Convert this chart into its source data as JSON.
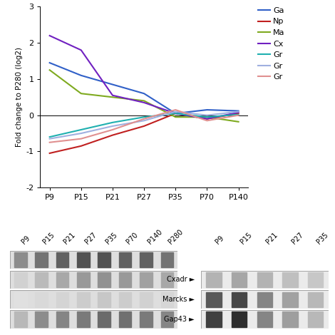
{
  "x_labels": [
    "P9",
    "P15",
    "P21",
    "P27",
    "P35",
    "P70",
    "P140"
  ],
  "x_vals": [
    0,
    1,
    2,
    3,
    4,
    5,
    6
  ],
  "series": {
    "Gap43": {
      "color": "#3060c8",
      "values": [
        1.45,
        1.1,
        0.85,
        0.6,
        0.05,
        0.15,
        0.12
      ]
    },
    "Nptx": {
      "color": "#c02020",
      "values": [
        -1.05,
        -0.85,
        -0.55,
        -0.3,
        0.05,
        -0.1,
        0.05
      ]
    },
    "Marcks": {
      "color": "#7faa20",
      "values": [
        1.25,
        0.6,
        0.5,
        0.4,
        -0.05,
        -0.05,
        -0.18
      ]
    },
    "Cxadr": {
      "color": "#7020c0",
      "values": [
        2.2,
        1.8,
        0.55,
        0.35,
        0.05,
        -0.1,
        0.08
      ]
    },
    "Grp1": {
      "color": "#20b0b0",
      "values": [
        -0.6,
        -0.4,
        -0.2,
        -0.05,
        0.05,
        -0.05,
        0.02
      ]
    },
    "Grp2": {
      "color": "#a0b0e0",
      "values": [
        -0.65,
        -0.5,
        -0.3,
        -0.15,
        0.1,
        0.0,
        0.1
      ]
    },
    "Grp3": {
      "color": "#e09090",
      "values": [
        -0.75,
        -0.65,
        -0.4,
        -0.1,
        0.15,
        -0.15,
        0.0
      ]
    }
  },
  "legend_abbrevs": [
    "Ga",
    "Np",
    "Ma",
    "Cx",
    "Gr",
    "Gr",
    "Gr"
  ],
  "ylabel": "Fold change to P280 (log2)",
  "ylim": [
    -2,
    3
  ],
  "yticks": [
    -2,
    -1,
    0,
    1,
    2,
    3
  ],
  "left_labels": [
    "P9",
    "P15",
    "P21",
    "P27",
    "P35",
    "P70",
    "P140",
    "P280"
  ],
  "right_labels": [
    "P9",
    "P15",
    "P21",
    "P27",
    "P35"
  ],
  "protein_names": [
    "Gap43",
    "Marcks",
    "Cxadr"
  ],
  "gel_left_rows": [
    [
      0.72,
      0.55,
      0.52,
      0.48,
      0.42,
      0.44,
      0.48,
      0.52
    ],
    [
      0.88,
      0.85,
      0.83,
      0.8,
      0.78,
      0.8,
      0.82,
      0.84
    ],
    [
      0.82,
      0.73,
      0.66,
      0.6,
      0.57,
      0.6,
      0.63,
      0.66
    ],
    [
      0.55,
      0.45,
      0.38,
      0.32,
      0.32,
      0.38,
      0.38,
      0.45
    ]
  ],
  "gel_right_rows": [
    [
      0.25,
      0.18,
      0.52,
      0.62,
      0.72
    ],
    [
      0.35,
      0.28,
      0.52,
      0.63,
      0.72
    ],
    [
      0.7,
      0.65,
      0.7,
      0.75,
      0.78
    ]
  ]
}
